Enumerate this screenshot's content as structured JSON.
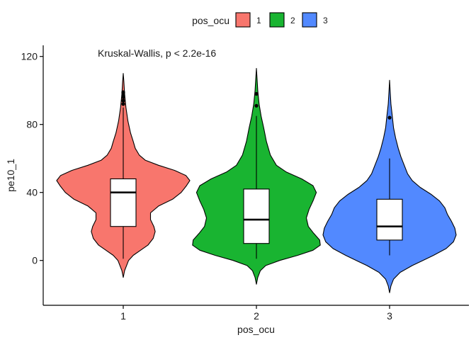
{
  "chart_data": {
    "type": "violin",
    "title": "",
    "xlabel": "pos_ocu",
    "ylabel": "pe10_1",
    "annotation": "Kruskal-Wallis, p < 2.2e-16",
    "categories": [
      "1",
      "2",
      "3"
    ],
    "yticks": [
      0,
      40,
      80,
      120
    ],
    "ylim": [
      -26,
      127
    ],
    "legend": {
      "title": "pos_ocu",
      "position": "top",
      "entries": [
        "1",
        "2",
        "3"
      ]
    },
    "colors": [
      "#F8766D",
      "#19B431",
      "#5289FF"
    ],
    "groups": [
      {
        "category": "1",
        "color": "#F8766D",
        "violin_range": [
          -10,
          110
        ],
        "violin_profile": [
          [
            -10,
            0.0
          ],
          [
            -6,
            0.02
          ],
          [
            -3,
            0.05
          ],
          [
            0,
            0.08
          ],
          [
            3,
            0.15
          ],
          [
            6,
            0.26
          ],
          [
            9,
            0.37
          ],
          [
            13,
            0.45
          ],
          [
            17,
            0.48
          ],
          [
            20,
            0.46
          ],
          [
            24,
            0.41
          ],
          [
            28,
            0.41
          ],
          [
            32,
            0.53
          ],
          [
            36,
            0.74
          ],
          [
            40,
            0.87
          ],
          [
            44,
            0.95
          ],
          [
            47,
            1.0
          ],
          [
            50,
            0.94
          ],
          [
            53,
            0.77
          ],
          [
            56,
            0.53
          ],
          [
            59,
            0.33
          ],
          [
            62,
            0.24
          ],
          [
            66,
            0.18
          ],
          [
            70,
            0.15
          ],
          [
            75,
            0.11
          ],
          [
            82,
            0.07
          ],
          [
            90,
            0.04
          ],
          [
            98,
            0.02
          ],
          [
            105,
            0.01
          ],
          [
            110,
            0.0
          ]
        ],
        "whisker": [
          1,
          90
        ],
        "q1": 20,
        "median": 40,
        "q3": 48,
        "outliers": [
          92,
          94,
          96,
          97,
          98,
          99
        ]
      },
      {
        "category": "2",
        "color": "#19B431",
        "violin_range": [
          -14,
          113
        ],
        "violin_profile": [
          [
            -14,
            0.0
          ],
          [
            -10,
            0.02
          ],
          [
            -6,
            0.06
          ],
          [
            -3,
            0.14
          ],
          [
            0,
            0.35
          ],
          [
            3,
            0.62
          ],
          [
            6,
            0.85
          ],
          [
            9,
            0.96
          ],
          [
            12,
            0.95
          ],
          [
            16,
            0.86
          ],
          [
            20,
            0.78
          ],
          [
            25,
            0.75
          ],
          [
            30,
            0.79
          ],
          [
            35,
            0.85
          ],
          [
            40,
            0.9
          ],
          [
            44,
            0.85
          ],
          [
            48,
            0.68
          ],
          [
            52,
            0.45
          ],
          [
            56,
            0.3
          ],
          [
            62,
            0.21
          ],
          [
            70,
            0.15
          ],
          [
            78,
            0.11
          ],
          [
            85,
            0.07
          ],
          [
            92,
            0.04
          ],
          [
            100,
            0.02
          ],
          [
            107,
            0.01
          ],
          [
            113,
            0.0
          ]
        ],
        "whisker": [
          1,
          85
        ],
        "q1": 10,
        "median": 24,
        "q3": 42,
        "outliers": [
          91,
          98
        ]
      },
      {
        "category": "3",
        "color": "#5289FF",
        "violin_range": [
          -19,
          106
        ],
        "violin_profile": [
          [
            -19,
            0.0
          ],
          [
            -15,
            0.02
          ],
          [
            -11,
            0.06
          ],
          [
            -7,
            0.16
          ],
          [
            -3,
            0.34
          ],
          [
            0,
            0.5
          ],
          [
            3,
            0.66
          ],
          [
            7,
            0.85
          ],
          [
            11,
            0.96
          ],
          [
            15,
            1.0
          ],
          [
            19,
            0.98
          ],
          [
            23,
            0.93
          ],
          [
            27,
            0.87
          ],
          [
            31,
            0.83
          ],
          [
            35,
            0.75
          ],
          [
            39,
            0.62
          ],
          [
            43,
            0.46
          ],
          [
            47,
            0.34
          ],
          [
            51,
            0.27
          ],
          [
            56,
            0.22
          ],
          [
            61,
            0.17
          ],
          [
            66,
            0.13
          ],
          [
            72,
            0.09
          ],
          [
            78,
            0.06
          ],
          [
            85,
            0.04
          ],
          [
            92,
            0.02
          ],
          [
            99,
            0.01
          ],
          [
            106,
            0.0
          ]
        ],
        "whisker": [
          3,
          60
        ],
        "q1": 12,
        "median": 20,
        "q3": 36,
        "outliers": [
          84
        ]
      }
    ]
  }
}
